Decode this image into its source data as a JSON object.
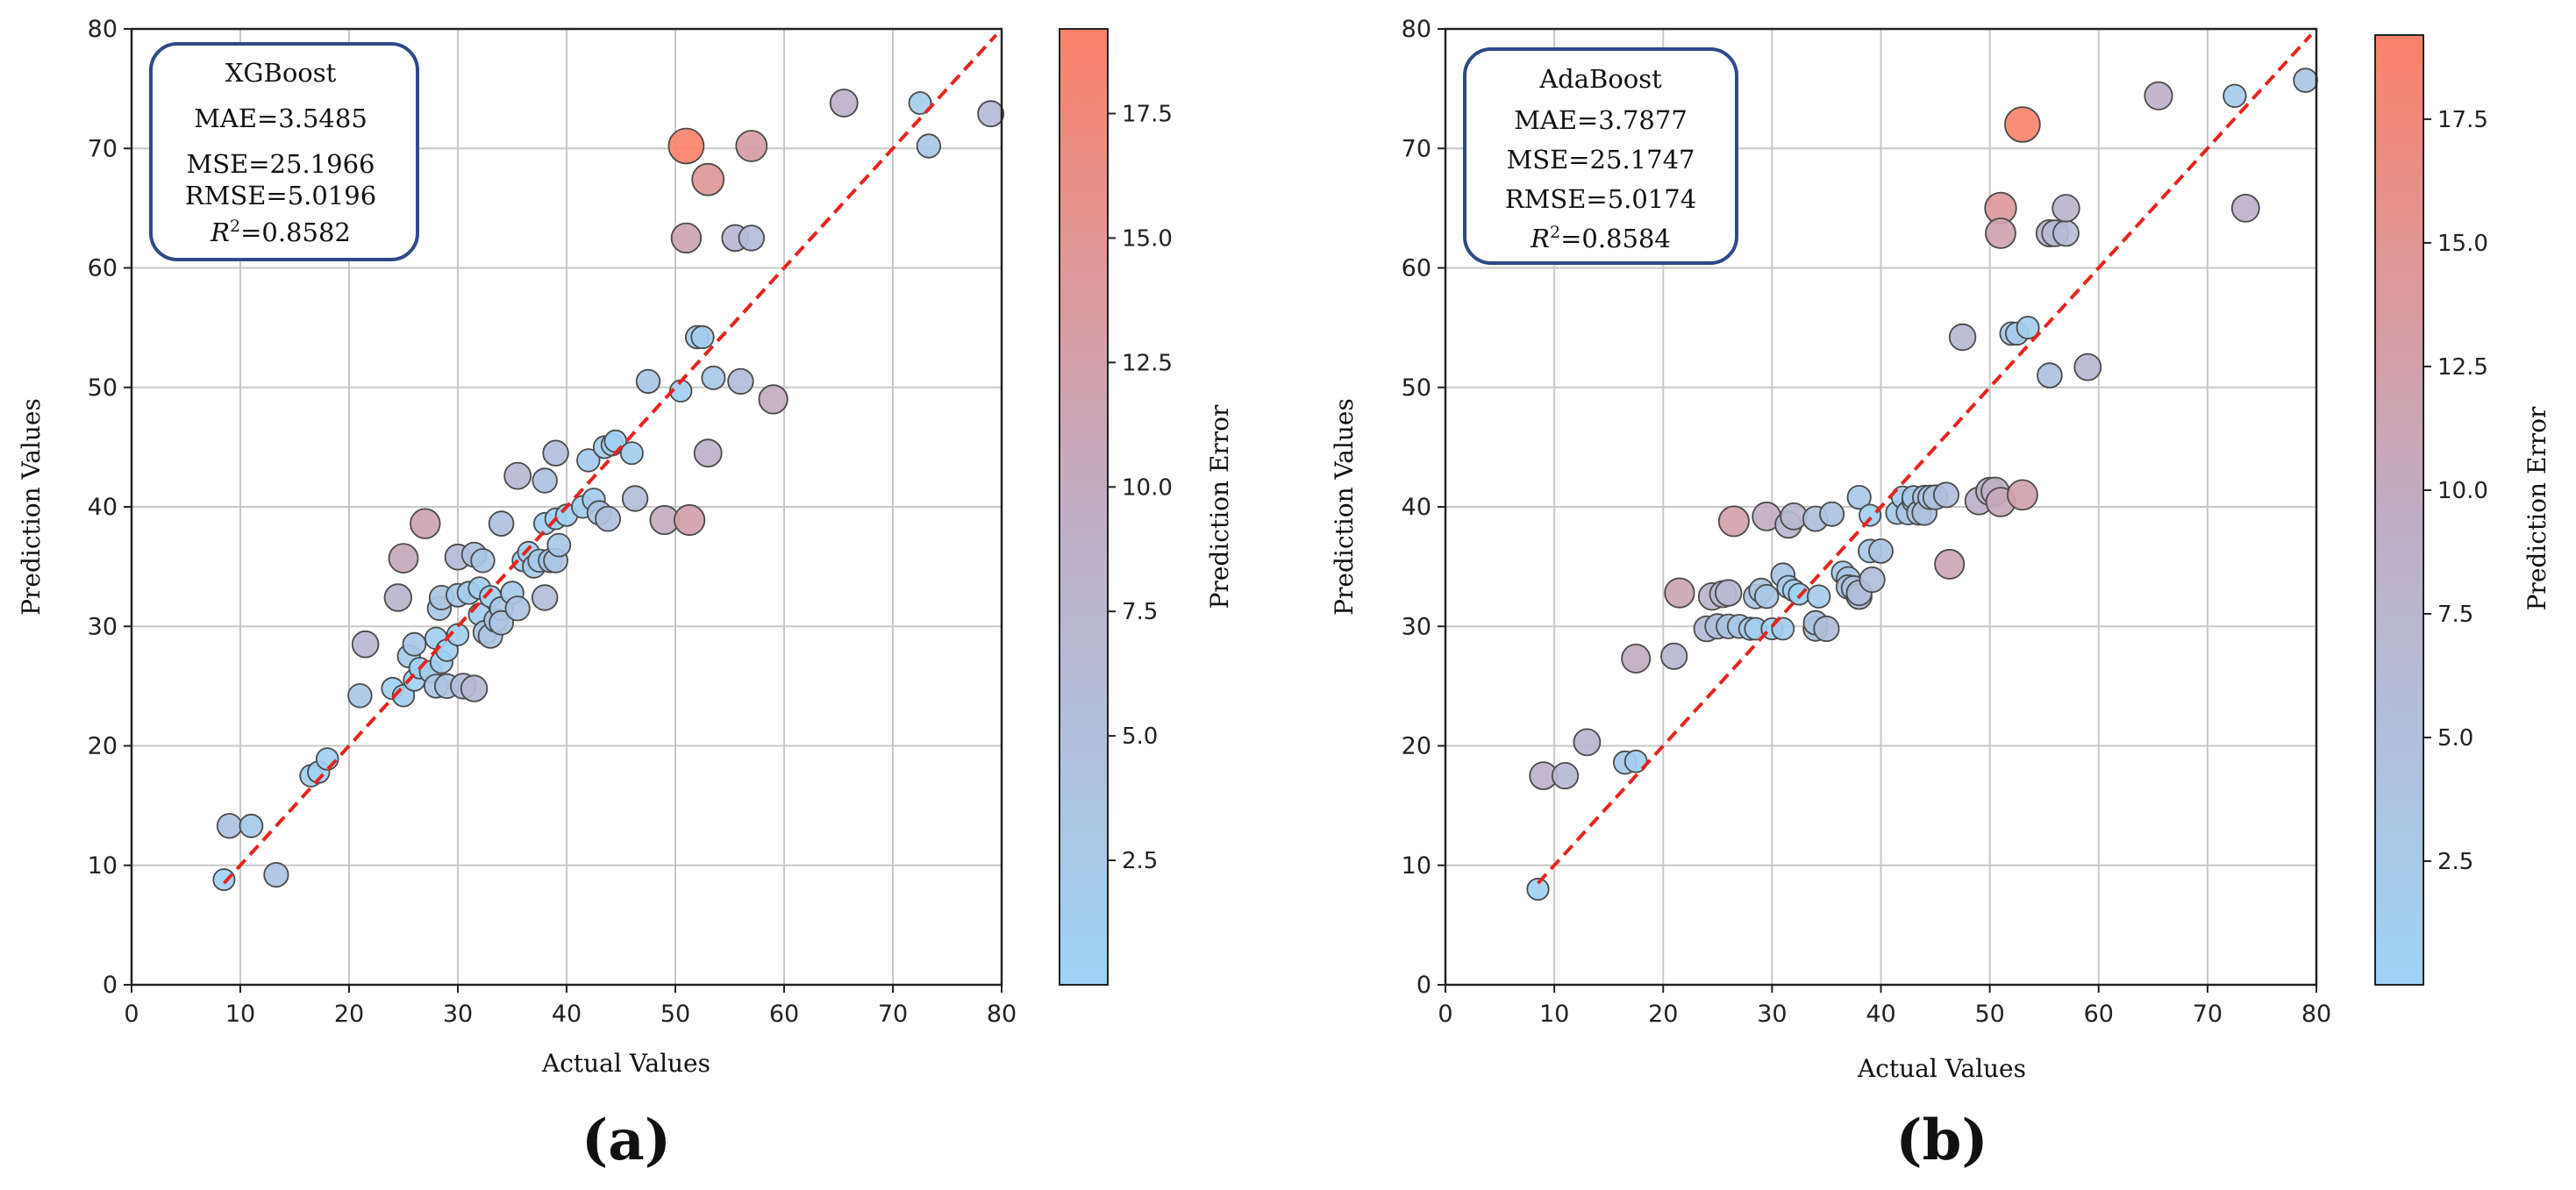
{
  "chart_data": [
    {
      "type": "scatter",
      "panel_label": "(a)",
      "model": "XGBoost",
      "metrics": {
        "mae": "MAE=3.5485",
        "mse": "MSE=25.1966",
        "rmse": "RMSE=5.0196",
        "r2_value": "=0.8582"
      },
      "xlabel": "Actual Values",
      "ylabel": "Prediction Values",
      "colorbar_label": "Prediction Error",
      "xlim": [
        0,
        80
      ],
      "ylim": [
        0,
        80
      ],
      "xticks": [
        "0",
        "10",
        "20",
        "30",
        "40",
        "50",
        "60",
        "70",
        "80"
      ],
      "yticks": [
        "0",
        "10",
        "20",
        "30",
        "40",
        "50",
        "60",
        "70",
        "80"
      ],
      "clim": [
        0,
        19.2
      ],
      "colorbar_ticks": [
        "2.5",
        "5.0",
        "7.5",
        "10.0",
        "12.5",
        "15.0",
        "17.5"
      ],
      "grid": true,
      "reference_line": "y = x",
      "points": [
        [
          8.5,
          8.8
        ],
        [
          9,
          13.3
        ],
        [
          11,
          13.3
        ],
        [
          13.3,
          9.2
        ],
        [
          16.5,
          17.5
        ],
        [
          17.2,
          17.8
        ],
        [
          18,
          18.9
        ],
        [
          21,
          24.2
        ],
        [
          21.5,
          28.5
        ],
        [
          24,
          24.8
        ],
        [
          24.5,
          32.4
        ],
        [
          25,
          35.7
        ],
        [
          25,
          24.2
        ],
        [
          25.5,
          27.5
        ],
        [
          26,
          28.5
        ],
        [
          26,
          25.5
        ],
        [
          26.5,
          26.5
        ],
        [
          27,
          38.6
        ],
        [
          27.5,
          26.2
        ],
        [
          28,
          25
        ],
        [
          28,
          29
        ],
        [
          28.3,
          31.5
        ],
        [
          28.5,
          32.4
        ],
        [
          28.5,
          27
        ],
        [
          29,
          28
        ],
        [
          29,
          25
        ],
        [
          30,
          29.3
        ],
        [
          30,
          35.8
        ],
        [
          30,
          32.6
        ],
        [
          30.5,
          25
        ],
        [
          31,
          32.8
        ],
        [
          31.5,
          36
        ],
        [
          31.5,
          24.8
        ],
        [
          32,
          31
        ],
        [
          32,
          33.2
        ],
        [
          32.3,
          35.5
        ],
        [
          32.5,
          29.5
        ],
        [
          33,
          29.2
        ],
        [
          33,
          32.5
        ],
        [
          33.5,
          30.5
        ],
        [
          34,
          31.5
        ],
        [
          34,
          38.6
        ],
        [
          34,
          30.3
        ],
        [
          35,
          32.8
        ],
        [
          35.5,
          31.5
        ],
        [
          35.5,
          42.6
        ],
        [
          36,
          35.5
        ],
        [
          36.5,
          36.2
        ],
        [
          37,
          35
        ],
        [
          37.5,
          35.5
        ],
        [
          38,
          42.2
        ],
        [
          38,
          32.4
        ],
        [
          38,
          38.6
        ],
        [
          38.5,
          35.5
        ],
        [
          39,
          39
        ],
        [
          39,
          44.5
        ],
        [
          39,
          35.5
        ],
        [
          39.3,
          36.8
        ],
        [
          40,
          39.3
        ],
        [
          41.5,
          40
        ],
        [
          42,
          43.9
        ],
        [
          42.5,
          40.6
        ],
        [
          43,
          39.5
        ],
        [
          43.5,
          45
        ],
        [
          43.8,
          39
        ],
        [
          44.2,
          45.2
        ],
        [
          44.5,
          45.5
        ],
        [
          46,
          44.5
        ],
        [
          46.3,
          40.7
        ],
        [
          47.5,
          50.5
        ],
        [
          49,
          38.9
        ],
        [
          50.5,
          49.7
        ],
        [
          51,
          70.2
        ],
        [
          51,
          62.5
        ],
        [
          51.3,
          38.9
        ],
        [
          52,
          54.2
        ],
        [
          52.5,
          54.2
        ],
        [
          53,
          67.4
        ],
        [
          53,
          44.5
        ],
        [
          53.5,
          50.8
        ],
        [
          55.5,
          62.5
        ],
        [
          56,
          50.5
        ],
        [
          57,
          62.5
        ],
        [
          57,
          70.2
        ],
        [
          59,
          49
        ],
        [
          65.5,
          73.8
        ],
        [
          72.5,
          73.8
        ],
        [
          73.3,
          70.2
        ],
        [
          79,
          72.9
        ]
      ],
      "errors": [
        0.3,
        4.3,
        2.3,
        4.1,
        1,
        0.6,
        0.9,
        3.2,
        7,
        0.8,
        7.9,
        10.7,
        0.8,
        2,
        2.5,
        0.5,
        0,
        11.6,
        1.3,
        3,
        1,
        3.2,
        3.9,
        1.5,
        1,
        4,
        0.7,
        5.8,
        2.6,
        5.5,
        1.8,
        4.5,
        6.7,
        1,
        1.2,
        3.2,
        3,
        3.8,
        0.5,
        3,
        2.5,
        4.6,
        3.7,
        2.2,
        4,
        7.1,
        0.5,
        0.3,
        2,
        2,
        4.2,
        5.6,
        0.6,
        3,
        0,
        5.5,
        3.5,
        2.5,
        0.7,
        1.5,
        1.9,
        1.9,
        3.5,
        1.5,
        4.8,
        1,
        1,
        1.5,
        5.6,
        3,
        10.1,
        0.8,
        19.2,
        11.5,
        12.4,
        2.2,
        1.7,
        14.4,
        8.5,
        2.7,
        7,
        5.5,
        5.5,
        13.2,
        10,
        8.3,
        1.3,
        3.1,
        6.1
      ]
    },
    {
      "type": "scatter",
      "panel_label": "(b)",
      "model": "AdaBoost",
      "metrics": {
        "mae": "MAE=3.7877",
        "mse": "MSE=25.1747",
        "rmse": "RMSE=5.0174",
        "r2_value": "=0.8584"
      },
      "xlabel": "Actual Values",
      "ylabel": "Prediction Values",
      "colorbar_label": "Prediction Error",
      "xlim": [
        0,
        80
      ],
      "ylim": [
        0,
        80
      ],
      "xticks": [
        "0",
        "10",
        "20",
        "30",
        "40",
        "50",
        "60",
        "70",
        "80"
      ],
      "yticks": [
        "0",
        "10",
        "20",
        "30",
        "40",
        "50",
        "60",
        "70",
        "80"
      ],
      "clim": [
        0,
        19.2
      ],
      "colorbar_ticks": [
        "2.5",
        "5.0",
        "7.5",
        "10.0",
        "12.5",
        "15.0",
        "17.5"
      ],
      "grid": true,
      "reference_line": "y = x",
      "points": [
        [
          8.5,
          8
        ],
        [
          9,
          17.5
        ],
        [
          11,
          17.5
        ],
        [
          13,
          20.3
        ],
        [
          16.5,
          18.6
        ],
        [
          17.5,
          18.7
        ],
        [
          17.5,
          27.3
        ],
        [
          21,
          27.5
        ],
        [
          21.5,
          32.8
        ],
        [
          24,
          29.8
        ],
        [
          24.5,
          32.5
        ],
        [
          25,
          30
        ],
        [
          25.5,
          32.7
        ],
        [
          26,
          30
        ],
        [
          26,
          32.8
        ],
        [
          26.5,
          38.8
        ],
        [
          27,
          30
        ],
        [
          28,
          29.8
        ],
        [
          28.5,
          32.5
        ],
        [
          28.5,
          29.8
        ],
        [
          29,
          33
        ],
        [
          29.5,
          32.5
        ],
        [
          29.5,
          39.2
        ],
        [
          30,
          29.8
        ],
        [
          31,
          34.3
        ],
        [
          31,
          29.8
        ],
        [
          31.5,
          33.3
        ],
        [
          31.5,
          38.5
        ],
        [
          32,
          39.2
        ],
        [
          32,
          33
        ],
        [
          32.5,
          32.7
        ],
        [
          34,
          29.8
        ],
        [
          34,
          30.3
        ],
        [
          34,
          39
        ],
        [
          34.3,
          32.5
        ],
        [
          35,
          29.8
        ],
        [
          35.5,
          39.4
        ],
        [
          36.5,
          34.5
        ],
        [
          37,
          34
        ],
        [
          37,
          33.3
        ],
        [
          37.5,
          33.2
        ],
        [
          38,
          40.8
        ],
        [
          38,
          32.5
        ],
        [
          38,
          32.8
        ],
        [
          39,
          39.3
        ],
        [
          39,
          36.3
        ],
        [
          39.2,
          33.9
        ],
        [
          40,
          36.3
        ],
        [
          41.5,
          39.5
        ],
        [
          42,
          40.8
        ],
        [
          42.5,
          39.5
        ],
        [
          43,
          40.5
        ],
        [
          43,
          40.8
        ],
        [
          43.5,
          39.5
        ],
        [
          44,
          40.8
        ],
        [
          44,
          39.5
        ],
        [
          44.5,
          40.8
        ],
        [
          45,
          40.8
        ],
        [
          46,
          41
        ],
        [
          46.3,
          35.2
        ],
        [
          47.5,
          54.2
        ],
        [
          49,
          40.5
        ],
        [
          50,
          41.3
        ],
        [
          50.5,
          41.3
        ],
        [
          51,
          65
        ],
        [
          51,
          62.9
        ],
        [
          51,
          40.4
        ],
        [
          52,
          54.5
        ],
        [
          52.5,
          54.5
        ],
        [
          53,
          72
        ],
        [
          53,
          41
        ],
        [
          53.5,
          55
        ],
        [
          55.5,
          51
        ],
        [
          55.5,
          62.9
        ],
        [
          56,
          62.9
        ],
        [
          57,
          62.9
        ],
        [
          57,
          65
        ],
        [
          59,
          51.7
        ],
        [
          65.5,
          74.4
        ],
        [
          72.5,
          74.4
        ],
        [
          73.5,
          65
        ],
        [
          79,
          75.7
        ]
      ],
      "errors": [
        0.5,
        8.5,
        6.5,
        7.3,
        2.1,
        1.2,
        9.8,
        6.5,
        11.3,
        5.8,
        8,
        5,
        7.2,
        4,
        6.8,
        12.3,
        3,
        1.8,
        4,
        1.3,
        4,
        3,
        9.7,
        0.2,
        3.3,
        1.2,
        1.8,
        7,
        7.2,
        1,
        0.2,
        4.2,
        3.7,
        5,
        1.8,
        5.2,
        3.9,
        2,
        3,
        3.7,
        4.3,
        2.8,
        5.5,
        5.2,
        0.3,
        2.7,
        5.3,
        3.7,
        2,
        1.2,
        3,
        2.5,
        2.2,
        4,
        3.2,
        4.5,
        3.7,
        4.2,
        5,
        11.1,
        6.7,
        8.5,
        8.7,
        9.2,
        14,
        11.9,
        10.6,
        2.5,
        2,
        19,
        12,
        1.5,
        4.5,
        7.4,
        6.9,
        5.9,
        8,
        7.3,
        8.9,
        1.9,
        8.5,
        3.3
      ]
    }
  ]
}
